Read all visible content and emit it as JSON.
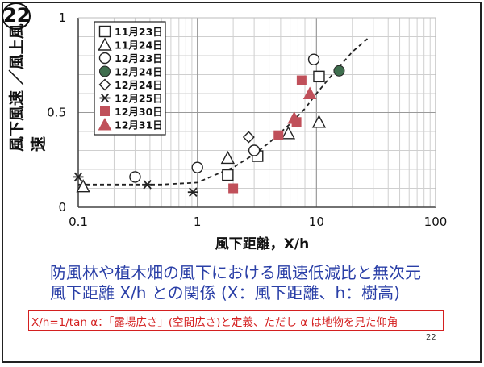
{
  "slide_badge": "22",
  "caption": {
    "line1": "防風林や植木畑の風下における風速低減比と無次元",
    "line2": "風下距離 X/h との関係 (X：風下距離、h：樹高)"
  },
  "note": "X/h=1/tan α：「露場広さ」(空間広さ)と定義、ただし α は地物を見た仰角",
  "page_number": "22",
  "colors": {
    "text": "#111111",
    "caption": "#2a3fa7",
    "note": "#d42020",
    "marker_red": "#c0505a",
    "marker_green": "#3f6e4e"
  },
  "chart_data": {
    "type": "scatter",
    "xscale": "log",
    "xlim": [
      0.1,
      100
    ],
    "ylim": [
      0,
      1
    ],
    "xlabel": "風下距離，X/h",
    "ylabel": "風下風速 ／風上風速",
    "xticks": [
      0.1,
      1,
      10,
      100
    ],
    "xtick_labels": [
      "0.1",
      "1",
      "10",
      "100"
    ],
    "yticks": [
      0,
      0.5,
      1
    ],
    "ytick_labels": [
      "0",
      "0.5",
      "1"
    ],
    "grid": true,
    "legend_position": "top-left",
    "series": [
      {
        "name": "11月23日",
        "marker": "square-open",
        "points": [
          [
            1.8,
            0.17
          ],
          [
            3.2,
            0.27
          ],
          [
            10.5,
            0.69
          ]
        ]
      },
      {
        "name": "11月24日",
        "marker": "triangle-open",
        "points": [
          [
            0.11,
            0.11
          ],
          [
            1.8,
            0.26
          ],
          [
            5.8,
            0.39
          ],
          [
            10.5,
            0.45
          ]
        ]
      },
      {
        "name": "12月23日",
        "marker": "circle-open",
        "points": [
          [
            0.3,
            0.16
          ],
          [
            1.0,
            0.21
          ],
          [
            3.0,
            0.3
          ],
          [
            9.5,
            0.78
          ]
        ]
      },
      {
        "name": "12月24日",
        "marker": "circle-filled",
        "points": [
          [
            15.5,
            0.72
          ]
        ]
      },
      {
        "name": "12月24日",
        "marker": "diamond-open",
        "points": [
          [
            2.7,
            0.37
          ]
        ]
      },
      {
        "name": "12月25日",
        "marker": "star",
        "points": [
          [
            0.1,
            0.16
          ],
          [
            0.38,
            0.12
          ],
          [
            0.92,
            0.08
          ]
        ]
      },
      {
        "name": "12月30日",
        "marker": "square-filled",
        "points": [
          [
            2.0,
            0.1
          ],
          [
            4.8,
            0.38
          ],
          [
            6.8,
            0.45
          ],
          [
            7.5,
            0.67
          ]
        ]
      },
      {
        "name": "12月31日",
        "marker": "triangle-filled",
        "points": [
          [
            6.5,
            0.47
          ],
          [
            8.8,
            0.6
          ]
        ]
      }
    ],
    "trend_line": [
      [
        0.1,
        0.12
      ],
      [
        0.5,
        0.12
      ],
      [
        1.0,
        0.13
      ],
      [
        1.4,
        0.17
      ],
      [
        2.0,
        0.21
      ],
      [
        3.0,
        0.28
      ],
      [
        4.0,
        0.34
      ],
      [
        6.0,
        0.44
      ],
      [
        8.0,
        0.52
      ],
      [
        10.0,
        0.6
      ],
      [
        14.0,
        0.71
      ],
      [
        20.0,
        0.82
      ],
      [
        28.0,
        0.9
      ]
    ]
  }
}
